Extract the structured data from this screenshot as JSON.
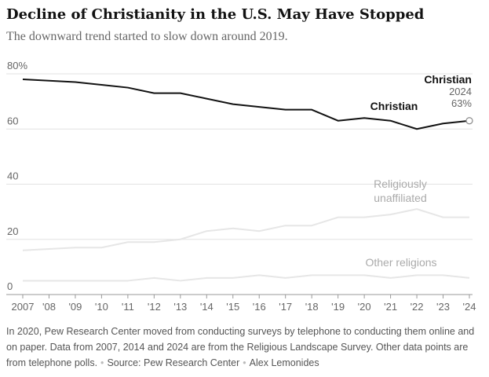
{
  "chart_data": {
    "type": "line",
    "title": "Decline of Christianity in the U.S. May Have Stopped",
    "subtitle": "The downward trend started to slow down around 2019.",
    "x": [
      2007,
      2008,
      2009,
      2010,
      2011,
      2012,
      2013,
      2014,
      2015,
      2016,
      2017,
      2018,
      2019,
      2020,
      2021,
      2022,
      2023,
      2024
    ],
    "xlim": [
      2007,
      2024
    ],
    "xticks": [
      2007,
      {
        "value": 2008,
        "label": "'08"
      },
      {
        "value": 2009,
        "label": "'09"
      },
      {
        "value": 2010,
        "label": "'10"
      },
      {
        "value": 2011,
        "label": "'11"
      },
      {
        "value": 2012,
        "label": "'12"
      },
      {
        "value": 2013,
        "label": "'13"
      },
      {
        "value": 2014,
        "label": "'14"
      },
      {
        "value": 2015,
        "label": "'15"
      },
      {
        "value": 2016,
        "label": "'16"
      },
      {
        "value": 2017,
        "label": "'17"
      },
      {
        "value": 2018,
        "label": "'18"
      },
      {
        "value": 2019,
        "label": "'19"
      },
      {
        "value": 2020,
        "label": "'20"
      },
      {
        "value": 2021,
        "label": "'21"
      },
      {
        "value": 2022,
        "label": "'22"
      },
      {
        "value": 2023,
        "label": "'23"
      },
      {
        "value": 2024,
        "label": "'24"
      }
    ],
    "ylim": [
      0,
      80
    ],
    "yticks": [
      0,
      20,
      40,
      60,
      {
        "value": 80,
        "label": "80%"
      }
    ],
    "grid": true,
    "series": [
      {
        "name": "Christian",
        "color": "#121212",
        "values": [
          78,
          77.5,
          77,
          76,
          75,
          73,
          73,
          71,
          69,
          68,
          67,
          67,
          63,
          64,
          63,
          60,
          62,
          63
        ],
        "value_labels": [
          null,
          null,
          null,
          null,
          null,
          null,
          null,
          null,
          null,
          null,
          null,
          null,
          null,
          null,
          null,
          null,
          null,
          "63%"
        ]
      },
      {
        "name": "Religiously unaffiliated",
        "color": "#e6e6e6",
        "values": [
          16,
          16.5,
          17,
          17,
          19,
          19,
          20,
          23,
          24,
          23,
          25,
          25,
          28,
          28,
          29,
          31,
          28,
          28
        ]
      },
      {
        "name": "Other religions",
        "color": "#e6e6e6",
        "values": [
          5,
          5,
          5,
          5,
          5,
          6,
          5,
          6,
          6,
          7,
          6,
          7,
          7,
          7,
          6,
          7,
          7,
          6
        ]
      }
    ],
    "note": "In 2020, Pew Research Center moved from conducting surveys by telephone to conducting them online and on paper. Data from 2007, 2014 and 2024 are from the Religious Landscape Survey. Other data points are from telephone polls.",
    "source": "Source: Pew Research Center",
    "credit": "Alex Lemonides"
  }
}
